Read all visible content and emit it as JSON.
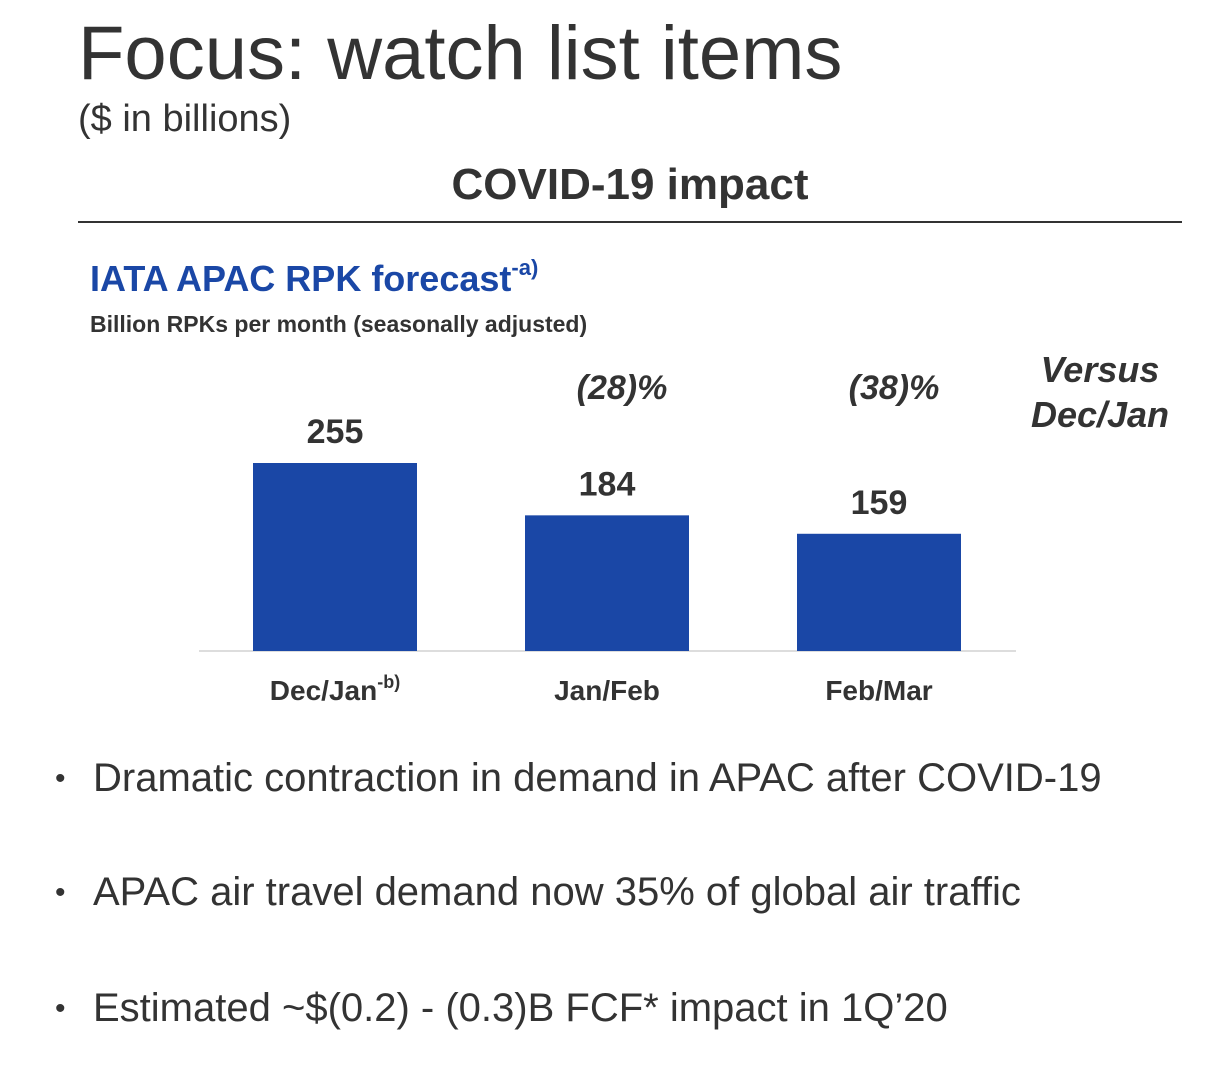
{
  "title": "Focus: watch list items",
  "subtitle": "($ in billions)",
  "section_heading": "COVID-19 impact",
  "chart_title": "IATA APAC RPK forecast",
  "chart_title_superscript": "-a)",
  "chart_subtitle": "Billion RPKs per month (seasonally adjusted)",
  "versus_label_line1": "Versus",
  "versus_label_line2": "Dec/Jan",
  "colors": {
    "bar": "#1a47a6",
    "chart_title": "#1a47a6",
    "text": "#333333",
    "axis": "#dddddd"
  },
  "chart_data": {
    "type": "bar",
    "categories": [
      "Dec/Jan",
      "Jan/Feb",
      "Feb/Mar"
    ],
    "category_superscripts": [
      "-b)",
      "",
      ""
    ],
    "values": [
      255,
      184,
      159
    ],
    "value_labels": [
      "255",
      "184",
      "159"
    ],
    "change_labels": [
      "",
      "(28)%",
      "(38)%"
    ],
    "ylim": [
      0,
      255
    ],
    "grid": false,
    "legend": "none"
  },
  "bullets": [
    "Dramatic contraction in demand in APAC after COVID-19",
    "APAC air travel demand now 35% of global air traffic",
    "Estimated ~$(0.2) - (0.3)B FCF* impact in 1Q’20"
  ]
}
